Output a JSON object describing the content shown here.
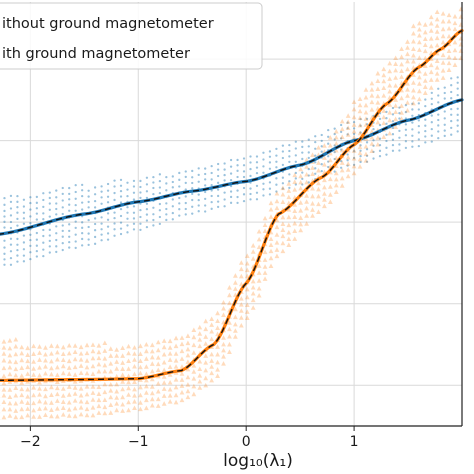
{
  "chart_data": {
    "type": "line",
    "title": "",
    "xlabel": "log₁₀(λ₁)",
    "ylabel": "",
    "xlim": [
      -2.3,
      2.0
    ],
    "ylim": [
      0,
      5.2
    ],
    "x_ticks": [
      -2,
      -1,
      0,
      1
    ],
    "x_tick_labels": [
      "−2",
      "−1",
      "0",
      "1"
    ],
    "y_gridlines": [
      0.5,
      1.5,
      2.5,
      3.5,
      4.5
    ],
    "grid": true,
    "legend": {
      "placement": "top-left"
    },
    "series": [
      {
        "name": "ithout ground magnetometer",
        "color": "#1f77b4",
        "marker": "dot",
        "x": [
          -2.3,
          -1.5,
          -1.0,
          -0.5,
          0.0,
          0.5,
          1.0,
          1.5,
          2.0
        ],
        "y": [
          2.35,
          2.6,
          2.75,
          2.88,
          3.0,
          3.2,
          3.5,
          3.75,
          4.0
        ],
        "band_lower": [
          1.95,
          2.2,
          2.4,
          2.6,
          2.75,
          2.95,
          3.2,
          3.4,
          3.6
        ],
        "band_upper": [
          2.8,
          2.95,
          3.05,
          3.15,
          3.3,
          3.5,
          3.75,
          3.95,
          4.3
        ]
      },
      {
        "name": "ith ground magnetometer",
        "color": "#ff7f0e",
        "marker": "triangle",
        "x": [
          -2.3,
          -1.5,
          -1.0,
          -0.6,
          -0.3,
          0.0,
          0.3,
          0.7,
          1.0,
          1.3,
          1.6,
          1.8,
          2.0
        ],
        "y": [
          0.56,
          0.57,
          0.58,
          0.68,
          1.0,
          1.75,
          2.6,
          3.05,
          3.45,
          3.95,
          4.4,
          4.62,
          4.85
        ],
        "band_lower": [
          0.1,
          0.12,
          0.2,
          0.3,
          0.55,
          1.3,
          2.1,
          2.65,
          3.1,
          3.55,
          4.0,
          4.25,
          4.5
        ],
        "band_upper": [
          1.05,
          1.0,
          1.0,
          1.1,
          1.4,
          2.1,
          2.95,
          3.45,
          3.95,
          4.45,
          4.95,
          5.1,
          5.1
        ]
      }
    ]
  }
}
